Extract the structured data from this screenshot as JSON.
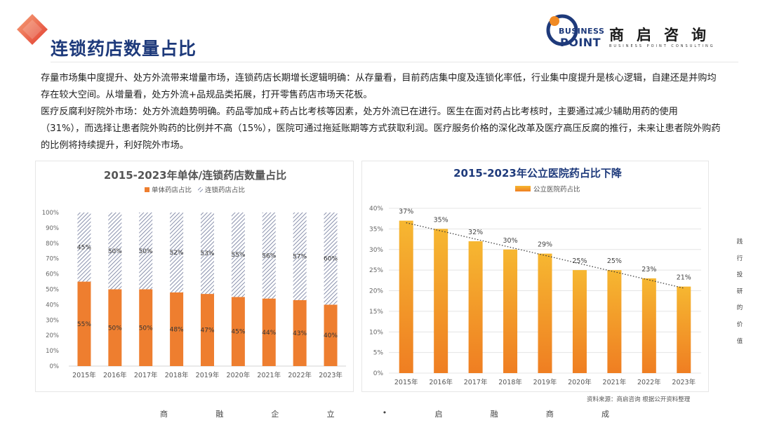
{
  "page_title": "连锁药店数量占比",
  "logo": {
    "line1": "BUSINESS",
    "line2": "POINT",
    "cn": "商启咨询",
    "en": "BUSINESS POINT CONSULTING",
    "icon": "logo-mark",
    "colors": {
      "navy": "#1e3a7b",
      "orange": "#f08a24"
    }
  },
  "paragraphs": [
    "存量市场集中度提升、处方外流带来增量市场，连锁药店长期增长逻辑明确：从存量看，目前药店集中度及连锁化率低，行业集中度提升是核心逻辑，自建还是并购均存在较大空间。从增量看，处方外流+品规品类拓展，打开零售药店市场天花板。",
    "医疗反腐利好院外市场：处方外流趋势明确。药品零加成+药占比考核等因素，处方外流已在进行。医生在面对药占比考核时，主要通过减少辅助用药的使用（31%），而选择让患者院外购药的比例并不高（15%），医院可通过拖延账期等方式获取利润。医疗服务价格的深化改革及医疗高压反腐的推行，未来让患者院外购药的比例将持续提升，利好院外市场。"
  ],
  "chart_data": [
    {
      "type": "bar",
      "stacked": true,
      "title": "2015-2023年单体/连锁药店数量占比",
      "categories": [
        "2015年",
        "2016年",
        "2017年",
        "2018年",
        "2019年",
        "2020年",
        "2021年",
        "2022年",
        "2023年"
      ],
      "series": [
        {
          "name": "单体药店占比",
          "values": [
            55,
            50,
            50,
            48,
            47,
            45,
            44,
            43,
            40
          ],
          "color": "#ee7e2f",
          "pattern": "solid"
        },
        {
          "name": "连锁药店占比",
          "values": [
            45,
            50,
            50,
            52,
            53,
            55,
            56,
            57,
            60
          ],
          "color": "#8a94b3",
          "pattern": "hatched"
        }
      ],
      "y_ticks": [
        "0%",
        "10%",
        "20%",
        "30%",
        "40%",
        "50%",
        "60%",
        "70%",
        "80%",
        "90%",
        "100%"
      ],
      "data_labels": {
        "s0": [
          "55%",
          "50%",
          "50%",
          "48%",
          "47%",
          "45%",
          "44%",
          "43%",
          "40%"
        ],
        "s1": [
          "45%",
          "50%",
          "50%",
          "52%",
          "53%",
          "55%",
          "56%",
          "57%",
          "60%"
        ]
      },
      "ylim": [
        0,
        100
      ],
      "legend": "top",
      "grid": false
    },
    {
      "type": "bar",
      "title": "2015-2023年公立医院药占比下降",
      "categories": [
        "2015年",
        "2016年",
        "2017年",
        "2018年",
        "2019年",
        "2020年",
        "2021年",
        "2022年",
        "2023年"
      ],
      "series": [
        {
          "name": "公立医院药占比",
          "values": [
            37,
            35,
            32,
            30,
            29,
            25,
            25,
            23,
            21
          ],
          "color_top": "#f6b731",
          "color_bottom": "#ef7e22"
        }
      ],
      "y_ticks": [
        "0%",
        "5%",
        "10%",
        "15%",
        "20%",
        "25%",
        "30%",
        "35%",
        "40%"
      ],
      "data_labels": [
        "37%",
        "35%",
        "32%",
        "30%",
        "29%",
        "25%",
        "25%",
        "23%",
        "21%"
      ],
      "ylim": [
        0,
        40
      ],
      "trendline": "linear, dotted",
      "legend": "top",
      "grid": true
    }
  ],
  "source": "资料来源：商启咨询 根据公开资料整理",
  "footer": [
    "商",
    "融",
    "企",
    "立",
    "•",
    "启",
    "融",
    "商",
    "成"
  ],
  "side": [
    "践",
    "行",
    "投",
    "研",
    "的",
    "价",
    "值"
  ]
}
